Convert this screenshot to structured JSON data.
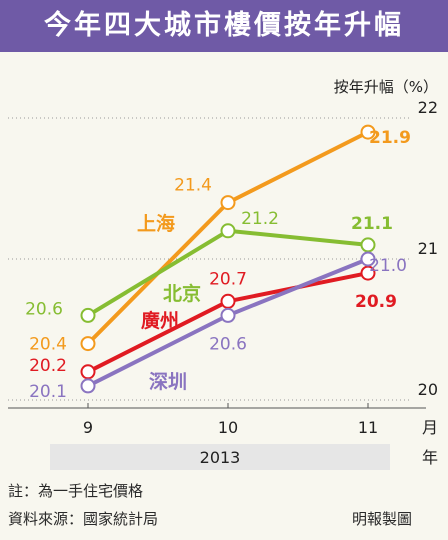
{
  "chart_data": {
    "type": "line",
    "title": "今年四大城市樓價按年升幅",
    "ylabel": "按年升幅（%）",
    "x": [
      "9",
      "10",
      "11"
    ],
    "x_unit": "月",
    "year_label": "2013",
    "year_unit": "年",
    "ylim": [
      20,
      22
    ],
    "y_ticks": [
      "20",
      "21",
      "22"
    ],
    "grid": true,
    "series": [
      {
        "name": "上海",
        "values": [
          20.4,
          21.4,
          21.9
        ],
        "color": "#f39a1d",
        "value_labels": [
          "20.4",
          "21.4",
          "21.9"
        ]
      },
      {
        "name": "北京",
        "values": [
          20.6,
          21.2,
          21.1
        ],
        "color": "#86bd32",
        "value_labels": [
          "20.6",
          "21.2",
          "21.1"
        ]
      },
      {
        "name": "廣州",
        "values": [
          20.2,
          20.7,
          20.9
        ],
        "color": "#e01b22",
        "value_labels": [
          "20.2",
          "20.7",
          "20.9"
        ]
      },
      {
        "name": "深圳",
        "values": [
          20.1,
          20.6,
          21.0
        ],
        "color": "#8a74c0",
        "value_labels": [
          "20.1",
          "20.6",
          "21.0"
        ]
      }
    ]
  },
  "footer": {
    "note": "註：為一手住宅價格",
    "source": "資料來源：國家統計局",
    "credit": "明報製圖"
  }
}
